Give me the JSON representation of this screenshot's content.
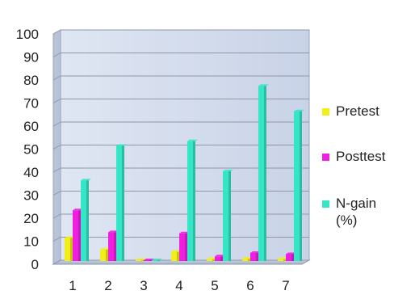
{
  "chart_data": {
    "type": "bar",
    "categories": [
      "1",
      "2",
      "3",
      "4",
      "5",
      "6",
      "7"
    ],
    "series": [
      {
        "name": "Pretest",
        "color": "#f2ee1a",
        "values": [
          10,
          5,
          0.5,
          4,
          0.8,
          1,
          0.8
        ]
      },
      {
        "name": "Posttest",
        "color": "#f01ee0",
        "values": [
          22,
          12.5,
          0.3,
          12,
          2,
          3.5,
          3
        ]
      },
      {
        "name": "N-gain\n(%)",
        "color": "#35e6c6",
        "values": [
          35,
          50,
          0.3,
          52,
          39,
          76,
          65
        ]
      }
    ],
    "ylim": [
      0,
      100
    ],
    "yticks": [
      0,
      10,
      20,
      30,
      40,
      50,
      60,
      70,
      80,
      90,
      100
    ],
    "xlabel": "",
    "ylabel": "",
    "grid": true,
    "legend": "right"
  }
}
